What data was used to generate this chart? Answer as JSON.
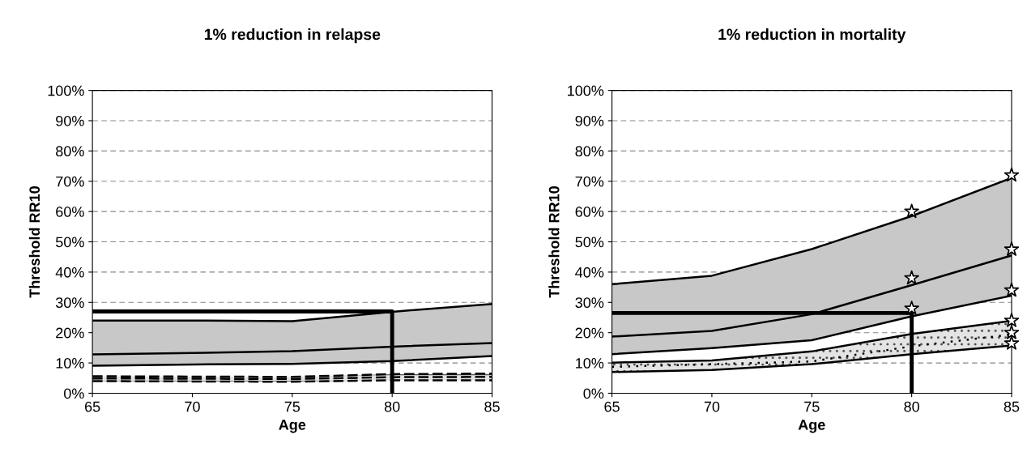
{
  "chart_data": [
    {
      "type": "line",
      "title": "1% reduction in relapse",
      "xlabel": "Age",
      "ylabel": "Threshold RR10",
      "x": [
        65,
        70,
        75,
        80,
        85
      ],
      "xlim": [
        65,
        85
      ],
      "xticks": [
        65,
        70,
        75,
        80,
        85
      ],
      "ylim": [
        0,
        100
      ],
      "yticks": [
        {
          "value": 0,
          "label": "0%"
        },
        {
          "value": 10,
          "label": "10%"
        },
        {
          "value": 20,
          "label": "20%"
        },
        {
          "value": 30,
          "label": "30%"
        },
        {
          "value": 40,
          "label": "40%"
        },
        {
          "value": 50,
          "label": "50%"
        },
        {
          "value": 60,
          "label": "60%"
        },
        {
          "value": 70,
          "label": "70%"
        },
        {
          "value": 80,
          "label": "80%"
        },
        {
          "value": 90,
          "label": "90%"
        },
        {
          "value": 100,
          "label": "100%"
        }
      ],
      "grid": "y",
      "legend": false,
      "series": [
        {
          "color": "#000000",
          "line_style": "solid",
          "values": [
            12.8,
            13.3,
            13.9,
            15.4,
            16.6
          ],
          "lower": [
            9.1,
            9.5,
            9.7,
            10.6,
            12.3
          ],
          "upper": [
            24.0,
            24.0,
            23.8,
            26.9,
            29.5
          ]
        },
        {
          "color": "#000000",
          "line_style": "solid",
          "values": [
            9.1,
            9.5,
            9.7,
            10.6,
            12.3
          ]
        },
        {
          "color": "#000000",
          "line_style": "solid",
          "values": [
            24.0,
            24.0,
            23.8,
            26.9,
            29.5
          ]
        },
        {
          "color": "#000000",
          "line_style": "dashed",
          "values": [
            4.9,
            4.8,
            4.7,
            5.3,
            5.4
          ],
          "lower": [
            4.0,
            3.9,
            3.8,
            4.3,
            4.3
          ],
          "upper": [
            5.6,
            5.5,
            5.4,
            6.3,
            6.5
          ]
        },
        {
          "color": "#000000",
          "line_style": "dashed",
          "values": [
            4.0,
            3.9,
            3.8,
            4.3,
            4.3
          ]
        },
        {
          "color": "#000000",
          "line_style": "dashed",
          "values": [
            5.6,
            5.5,
            5.4,
            6.3,
            6.5
          ]
        },
        {
          "color": "#000000",
          "line_style": "solid",
          "x": [
            65,
            80,
            80
          ],
          "values": [
            27,
            27,
            0
          ]
        }
      ]
    },
    {
      "type": "line",
      "title": "1% reduction in mortality",
      "xlabel": "Age",
      "ylabel": "Threshold RR10",
      "x": [
        65,
        70,
        75,
        80,
        85
      ],
      "xlim": [
        65,
        85
      ],
      "xticks": [
        65,
        70,
        75,
        80,
        85
      ],
      "ylim": [
        0,
        100
      ],
      "yticks": [
        {
          "value": 0,
          "label": "0%"
        },
        {
          "value": 10,
          "label": "10%"
        },
        {
          "value": 20,
          "label": "20%"
        },
        {
          "value": 30,
          "label": "30%"
        },
        {
          "value": 40,
          "label": "40%"
        },
        {
          "value": 50,
          "label": "50%"
        },
        {
          "value": 60,
          "label": "60%"
        },
        {
          "value": 70,
          "label": "70%"
        },
        {
          "value": 80,
          "label": "80%"
        },
        {
          "value": 90,
          "label": "90%"
        },
        {
          "value": 100,
          "label": "100%"
        }
      ],
      "grid": "y",
      "legend": false,
      "series": [
        {
          "color": "#000000",
          "line_style": "solid",
          "values": [
            18.7,
            20.6,
            26.1,
            35.7,
            45.5
          ],
          "lower": [
            12.9,
            14.9,
            17.5,
            25.4,
            32.2
          ],
          "upper": [
            36.0,
            38.8,
            47.6,
            58.5,
            71.1
          ]
        },
        {
          "color": "#000000",
          "line_style": "solid",
          "values": [
            12.9,
            14.9,
            17.5,
            25.4,
            32.2
          ]
        },
        {
          "color": "#000000",
          "line_style": "solid",
          "values": [
            36.0,
            38.8,
            47.6,
            58.5,
            71.1
          ]
        },
        {
          "color": "#000000",
          "line_style": "dotted",
          "values": [
            8.7,
            9.6,
            10.5,
            15.5,
            19.4
          ],
          "lower": [
            7.0,
            7.7,
            9.6,
            12.9,
            15.8
          ],
          "upper": [
            10.1,
            10.8,
            13.8,
            19.6,
            23.9
          ]
        },
        {
          "color": "#000000",
          "line_style": "solid",
          "values": [
            7.0,
            7.7,
            9.6,
            12.9,
            15.8
          ]
        },
        {
          "color": "#000000",
          "line_style": "solid",
          "values": [
            10.1,
            10.8,
            13.8,
            19.6,
            23.9
          ]
        },
        {
          "color": "#000000",
          "line_style": "solid",
          "x": [
            65,
            80,
            80
          ],
          "values": [
            26.5,
            26.5,
            0
          ]
        },
        {
          "type": "scatter",
          "color": "#000000",
          "marker": "star",
          "x": [
            80,
            80,
            80,
            85,
            85,
            85,
            85,
            85,
            85
          ],
          "values": [
            60,
            38,
            28,
            72,
            47.5,
            34,
            24,
            20,
            16.5
          ]
        }
      ]
    }
  ]
}
